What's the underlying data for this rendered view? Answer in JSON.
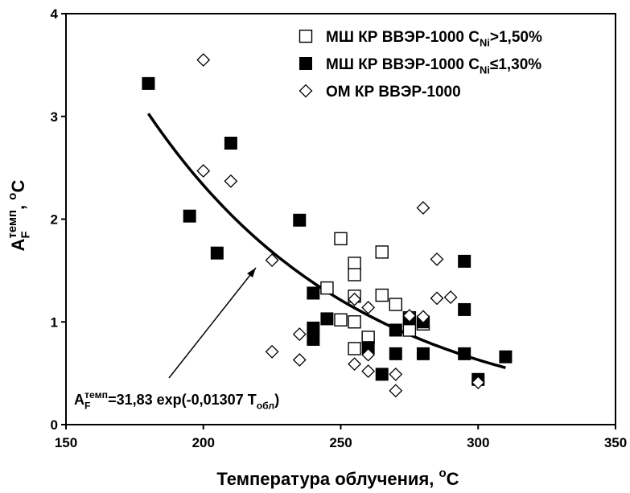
{
  "chart_data": {
    "type": "scatter",
    "x_label": [
      {
        "text": "Температура облучения, "
      },
      {
        "text": "o",
        "pos": "sup"
      },
      {
        "text": "C"
      }
    ],
    "y_label": [
      {
        "text": "A"
      },
      {
        "text": "F",
        "pos": "sub"
      },
      {
        "text": "темп",
        "pos": "sup"
      },
      {
        "text": ", "
      },
      {
        "text": "o",
        "pos": "sup"
      },
      {
        "text": "C"
      }
    ],
    "xlim": [
      150,
      350
    ],
    "xticks": [
      150,
      200,
      250,
      300,
      350
    ],
    "ylim": [
      0,
      4
    ],
    "yticks": [
      0,
      1,
      2,
      3,
      4
    ],
    "legend": "upper right",
    "series": [
      {
        "name": [
          {
            "text": "МШ КР ВВЭР-1000 C"
          },
          {
            "text": "Ni",
            "pos": "sub"
          },
          {
            "text": ">1,50%"
          }
        ],
        "marker": "square-open",
        "color": "#000000",
        "x": [
          250,
          255,
          255,
          265,
          245,
          255,
          265,
          270,
          250,
          255,
          260,
          255,
          275,
          280,
          275
        ],
        "values": [
          1.81,
          1.57,
          1.46,
          1.68,
          1.33,
          1.25,
          1.26,
          1.17,
          1.02,
          1.0,
          0.85,
          0.74,
          0.92,
          0.98,
          1.04
        ]
      },
      {
        "name": [
          {
            "text": "МШ КР ВВЭР-1000 C"
          },
          {
            "text": "Ni",
            "pos": "sub"
          },
          {
            "text": "≤1,30%"
          }
        ],
        "marker": "square-filled",
        "color": "#000000",
        "x": [
          180,
          195,
          210,
          205,
          235,
          240,
          240,
          240,
          245,
          260,
          265,
          270,
          270,
          275,
          280,
          280,
          295,
          295,
          295,
          300,
          310
        ],
        "values": [
          3.32,
          2.03,
          2.74,
          1.67,
          1.99,
          1.28,
          0.94,
          0.83,
          1.03,
          0.75,
          0.49,
          0.92,
          0.69,
          1.03,
          1.0,
          0.69,
          1.59,
          1.12,
          0.69,
          0.44,
          0.66
        ]
      },
      {
        "name": [
          {
            "text": "ОМ КР ВВЭР-1000"
          }
        ],
        "marker": "diamond-open",
        "color": "#000000",
        "x": [
          200,
          200,
          210,
          225,
          225,
          235,
          235,
          255,
          260,
          255,
          260,
          260,
          270,
          270,
          280,
          285,
          285,
          290,
          275,
          280,
          300
        ],
        "values": [
          3.55,
          2.47,
          2.37,
          1.6,
          0.71,
          0.88,
          0.63,
          1.22,
          1.14,
          0.59,
          0.68,
          0.52,
          0.49,
          0.33,
          2.11,
          1.61,
          1.23,
          1.24,
          1.06,
          1.05,
          0.41
        ]
      }
    ],
    "fit": {
      "coef": 31.83,
      "rate": -0.01307,
      "xlim": [
        180,
        310
      ],
      "color": "#000000"
    },
    "annotation": [
      {
        "text": "A"
      },
      {
        "text": "F",
        "pos": "sub"
      },
      {
        "text": "темп",
        "pos": "sup"
      },
      {
        "text": "=31,83  exp(-0,01307 T"
      },
      {
        "text": "обл",
        "pos": "sub"
      },
      {
        "text": ")"
      }
    ]
  }
}
